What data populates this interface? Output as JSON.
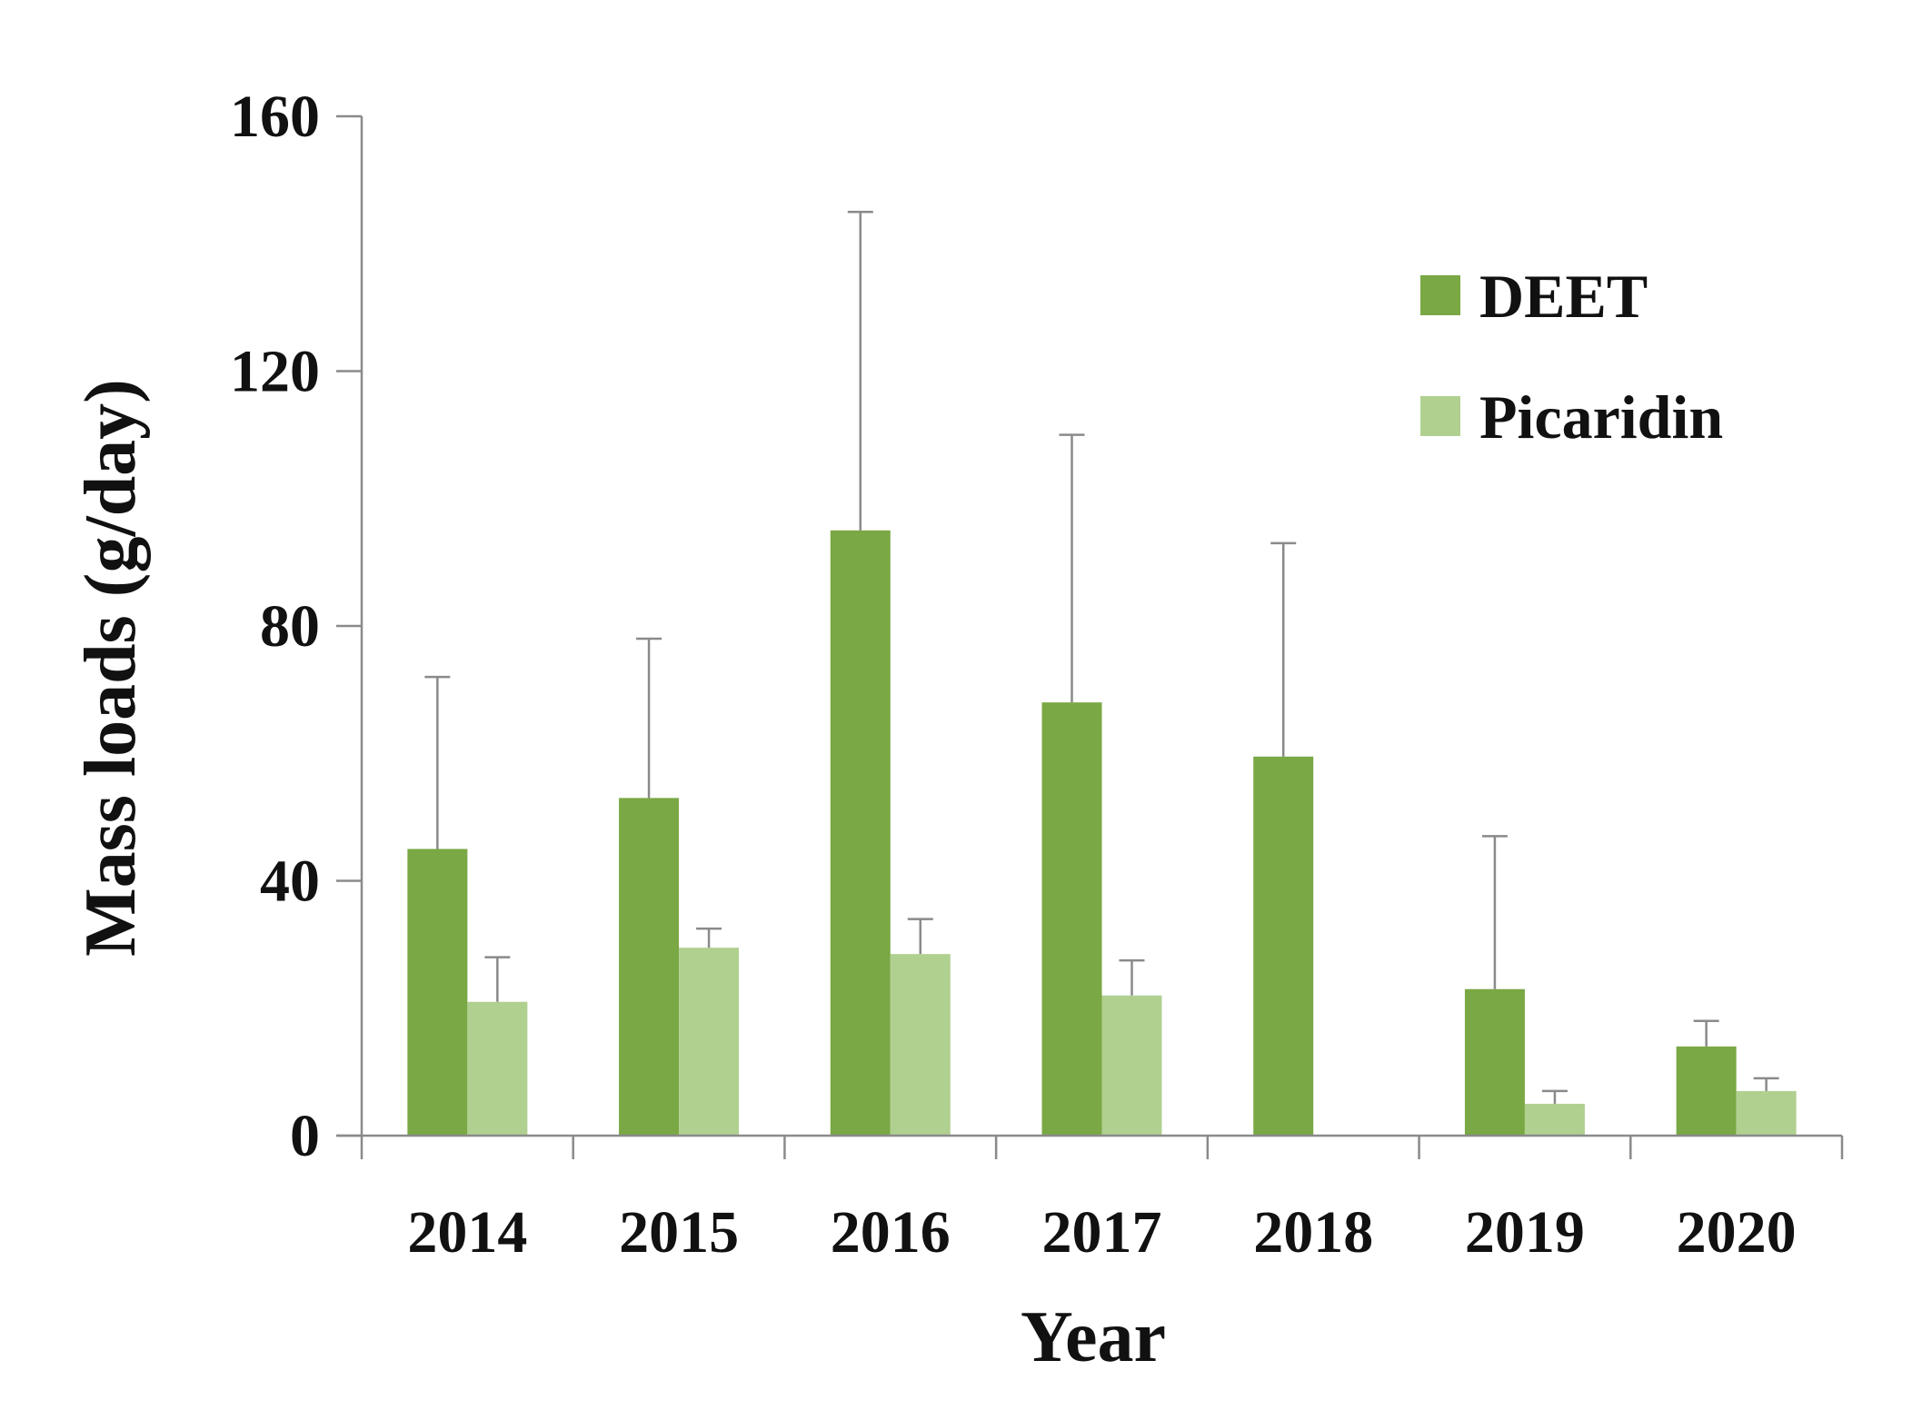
{
  "chart_data": {
    "type": "bar",
    "title": "",
    "xlabel": "Year",
    "ylabel": "Mass loads (g/day)",
    "ylim": [
      0,
      160
    ],
    "yticks": [
      0,
      40,
      80,
      120,
      160
    ],
    "categories": [
      "2014",
      "2015",
      "2016",
      "2017",
      "2018",
      "2019",
      "2020"
    ],
    "series": [
      {
        "name": "DEET",
        "color": "#7aa844",
        "values": [
          45,
          53,
          95,
          68,
          59.5,
          23,
          14
        ],
        "error_upper": [
          72,
          78,
          145,
          110,
          93,
          47,
          18
        ]
      },
      {
        "name": "Picaridin",
        "color": "#b0d090",
        "values": [
          21,
          29.5,
          28.5,
          22,
          null,
          5,
          7
        ],
        "error_upper": [
          28,
          32.5,
          34,
          27.5,
          null,
          7,
          9
        ]
      }
    ],
    "legend_position": "top-right",
    "grid": false
  }
}
